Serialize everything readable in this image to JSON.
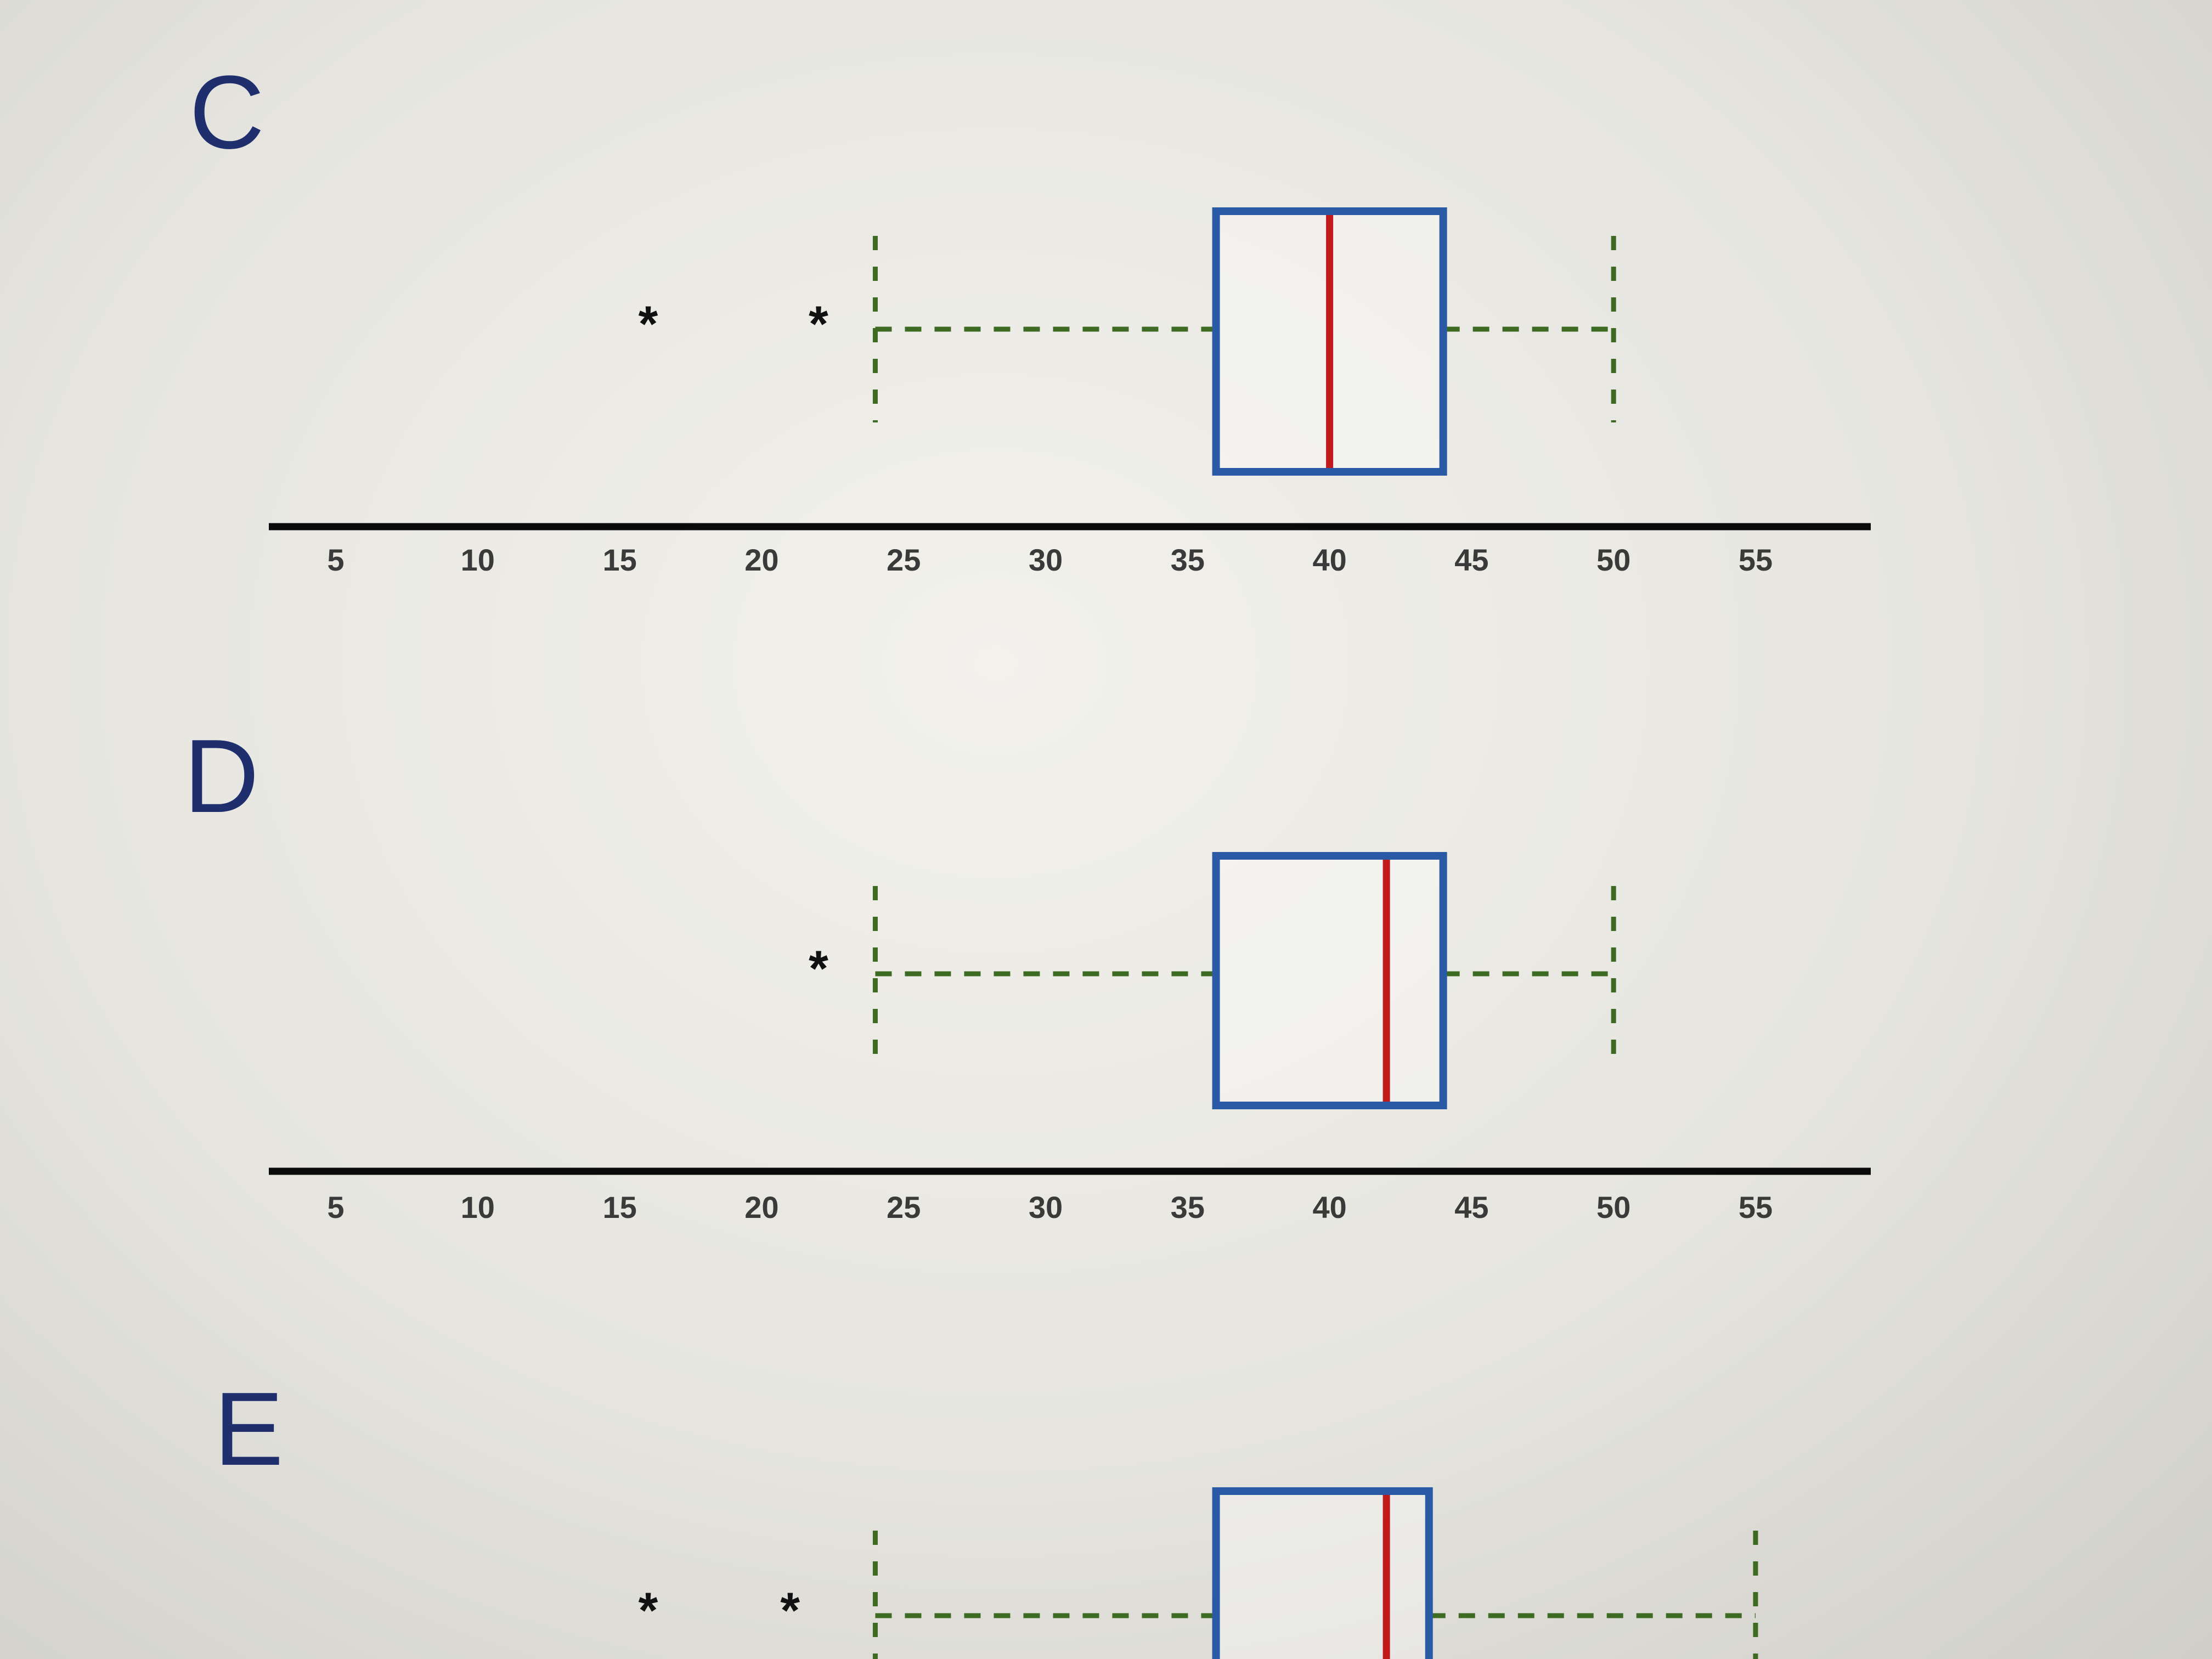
{
  "colors": {
    "box": "#2a59a6",
    "median": "#c01a1a",
    "whisker": "#3e6b24",
    "axis": "#0a0a0a",
    "letter": "#1f2f6e"
  },
  "outlier_symbol": "*",
  "chart_data": [
    {
      "type": "boxplot",
      "panel_label": "C",
      "x_ticks": [
        5,
        10,
        15,
        20,
        25,
        30,
        35,
        40,
        45,
        50,
        55
      ],
      "xlim": [
        5,
        55
      ],
      "whisker_low": 24,
      "q1": 36,
      "median": 40,
      "q3": 44,
      "whisker_high": 50,
      "outliers": [
        16,
        22
      ],
      "grid": false
    },
    {
      "type": "boxplot",
      "panel_label": "D",
      "x_ticks": [
        5,
        10,
        15,
        20,
        25,
        30,
        35,
        40,
        45,
        50,
        55
      ],
      "xlim": [
        5,
        55
      ],
      "whisker_low": 24,
      "q1": 36,
      "median": 42,
      "q3": 44,
      "whisker_high": 50,
      "outliers": [
        22
      ],
      "grid": false
    },
    {
      "type": "boxplot",
      "panel_label": "E",
      "x_ticks": [],
      "xlim": [
        5,
        55
      ],
      "whisker_low": 24,
      "q1": 36,
      "median": 42,
      "q3": 43.5,
      "whisker_high": 55,
      "outliers": [
        16,
        21
      ],
      "grid": false
    }
  ]
}
